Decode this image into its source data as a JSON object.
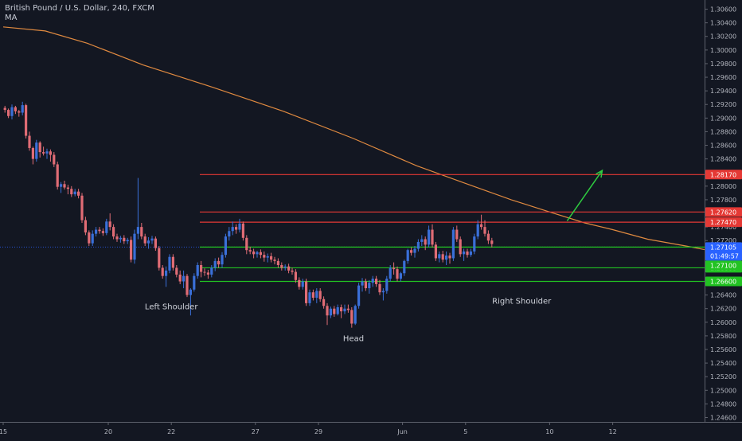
{
  "chart_data": {
    "type": "candlestick",
    "title": "British Pound / U.S. Dollar, 240, FXCM",
    "indicator_label": "MA",
    "ylim": [
      1.246,
      1.307
    ],
    "y_ticks": [
      "1.30600",
      "1.30400",
      "1.30200",
      "1.30000",
      "1.29800",
      "1.29600",
      "1.29400",
      "1.29200",
      "1.29000",
      "1.28800",
      "1.28600",
      "1.28400",
      "1.28200",
      "1.28000",
      "1.27800",
      "1.27600",
      "1.27400",
      "1.27200",
      "1.27000",
      "1.26800",
      "1.26600",
      "1.26400",
      "1.26200",
      "1.26000",
      "1.25800",
      "1.25600",
      "1.25400",
      "1.25200",
      "1.25000",
      "1.24800",
      "1.24600"
    ],
    "x_ticks": [
      {
        "label": "15",
        "bar": 0
      },
      {
        "label": "20",
        "bar": 30
      },
      {
        "label": "22",
        "bar": 48
      },
      {
        "label": "27",
        "bar": 72
      },
      {
        "label": "29",
        "bar": 90
      },
      {
        "label": "Jun",
        "bar": 114
      },
      {
        "label": "5",
        "bar": 132
      },
      {
        "label": "10",
        "bar": 156
      },
      {
        "label": "12",
        "bar": 174
      }
    ],
    "up_color": "#3a6fd8",
    "down_color": "#e06c75",
    "candles": [
      [
        1.2915,
        1.2918,
        1.2908,
        1.2912
      ],
      [
        1.2912,
        1.2914,
        1.29,
        1.2903
      ],
      [
        1.2903,
        1.292,
        1.2898,
        1.2916
      ],
      [
        1.2916,
        1.2918,
        1.2906,
        1.291
      ],
      [
        1.291,
        1.2912,
        1.2902,
        1.2908
      ],
      [
        1.2908,
        1.2924,
        1.2904,
        1.2919
      ],
      [
        1.2919,
        1.2921,
        1.287,
        1.2874
      ],
      [
        1.2874,
        1.288,
        1.2852,
        1.2856
      ],
      [
        1.2856,
        1.2858,
        1.2832,
        1.284
      ],
      [
        1.284,
        1.2868,
        1.2836,
        1.2864
      ],
      [
        1.2864,
        1.2866,
        1.2842,
        1.285
      ],
      [
        1.285,
        1.2858,
        1.2845,
        1.2848
      ],
      [
        1.2848,
        1.2855,
        1.284,
        1.2851
      ],
      [
        1.2851,
        1.2854,
        1.2836,
        1.2846
      ],
      [
        1.2846,
        1.285,
        1.2828,
        1.2832
      ],
      [
        1.2832,
        1.2836,
        1.2795,
        1.2799
      ],
      [
        1.2799,
        1.2806,
        1.279,
        1.2803
      ],
      [
        1.2803,
        1.2808,
        1.2795,
        1.2798
      ],
      [
        1.2798,
        1.2802,
        1.2788,
        1.2796
      ],
      [
        1.2796,
        1.28,
        1.2784,
        1.2788
      ],
      [
        1.2788,
        1.2796,
        1.2785,
        1.2792
      ],
      [
        1.2792,
        1.2796,
        1.2782,
        1.2786
      ],
      [
        1.2786,
        1.279,
        1.2746,
        1.275
      ],
      [
        1.275,
        1.2755,
        1.2728,
        1.2732
      ],
      [
        1.2732,
        1.2735,
        1.2712,
        1.2716
      ],
      [
        1.2716,
        1.2735,
        1.2712,
        1.273
      ],
      [
        1.273,
        1.274,
        1.2726,
        1.2736
      ],
      [
        1.2736,
        1.274,
        1.273,
        1.2734
      ],
      [
        1.2734,
        1.2738,
        1.2727,
        1.2731
      ],
      [
        1.2731,
        1.2752,
        1.2728,
        1.2748
      ],
      [
        1.2748,
        1.276,
        1.2735,
        1.274
      ],
      [
        1.274,
        1.2744,
        1.2722,
        1.2726
      ],
      [
        1.2726,
        1.273,
        1.2718,
        1.2722
      ],
      [
        1.2722,
        1.2727,
        1.2717,
        1.2724
      ],
      [
        1.2724,
        1.2728,
        1.2715,
        1.2719
      ],
      [
        1.2719,
        1.2724,
        1.2715,
        1.2721
      ],
      [
        1.2721,
        1.2726,
        1.2688,
        1.2692
      ],
      [
        1.2692,
        1.2736,
        1.2686,
        1.273
      ],
      [
        1.273,
        1.2812,
        1.2722,
        1.274
      ],
      [
        1.274,
        1.2746,
        1.2722,
        1.2726
      ],
      [
        1.2726,
        1.273,
        1.2712,
        1.2716
      ],
      [
        1.2716,
        1.2725,
        1.2708,
        1.272
      ],
      [
        1.272,
        1.2727,
        1.2715,
        1.2723
      ],
      [
        1.2723,
        1.2726,
        1.2705,
        1.2709
      ],
      [
        1.2709,
        1.2712,
        1.2676,
        1.268
      ],
      [
        1.268,
        1.2684,
        1.2664,
        1.2668
      ],
      [
        1.2668,
        1.2682,
        1.2652,
        1.2676
      ],
      [
        1.2676,
        1.27,
        1.2672,
        1.2696
      ],
      [
        1.2696,
        1.27,
        1.2676,
        1.268
      ],
      [
        1.268,
        1.2684,
        1.2666,
        1.267
      ],
      [
        1.267,
        1.2676,
        1.2656,
        1.266
      ],
      [
        1.266,
        1.2676,
        1.265,
        1.2668
      ],
      [
        1.2668,
        1.2671,
        1.2637,
        1.264
      ],
      [
        1.264,
        1.265,
        1.261,
        1.2648
      ],
      [
        1.2648,
        1.2672,
        1.2645,
        1.2668
      ],
      [
        1.2668,
        1.2688,
        1.2664,
        1.2684
      ],
      [
        1.2684,
        1.269,
        1.2666,
        1.2674
      ],
      [
        1.2674,
        1.2679,
        1.2668,
        1.2673
      ],
      [
        1.2673,
        1.2677,
        1.2664,
        1.267
      ],
      [
        1.267,
        1.2684,
        1.2666,
        1.268
      ],
      [
        1.268,
        1.2694,
        1.2675,
        1.269
      ],
      [
        1.269,
        1.2695,
        1.268,
        1.2685
      ],
      [
        1.2685,
        1.2703,
        1.268,
        1.2699
      ],
      [
        1.2699,
        1.273,
        1.2695,
        1.2726
      ],
      [
        1.2726,
        1.274,
        1.272,
        1.2734
      ],
      [
        1.2734,
        1.2748,
        1.2728,
        1.274
      ],
      [
        1.274,
        1.2744,
        1.273,
        1.2736
      ],
      [
        1.2736,
        1.2752,
        1.2732,
        1.2745
      ],
      [
        1.2745,
        1.2748,
        1.272,
        1.2724
      ],
      [
        1.2724,
        1.2728,
        1.27,
        1.2706
      ],
      [
        1.2706,
        1.2711,
        1.27,
        1.2704
      ],
      [
        1.2704,
        1.2708,
        1.2694,
        1.27
      ],
      [
        1.27,
        1.2705,
        1.2695,
        1.2703
      ],
      [
        1.2703,
        1.2707,
        1.2694,
        1.2699
      ],
      [
        1.2699,
        1.2704,
        1.2689,
        1.2695
      ],
      [
        1.2695,
        1.2701,
        1.2688,
        1.2697
      ],
      [
        1.2697,
        1.2702,
        1.2688,
        1.2692
      ],
      [
        1.2692,
        1.2696,
        1.2685,
        1.269
      ],
      [
        1.269,
        1.2694,
        1.268,
        1.2684
      ],
      [
        1.2684,
        1.2688,
        1.2676,
        1.268
      ],
      [
        1.268,
        1.2685,
        1.2676,
        1.2682
      ],
      [
        1.2682,
        1.2686,
        1.2672,
        1.2676
      ],
      [
        1.2676,
        1.268,
        1.267,
        1.2674
      ],
      [
        1.2674,
        1.2678,
        1.2658,
        1.2662
      ],
      [
        1.2662,
        1.2666,
        1.2648,
        1.2652
      ],
      [
        1.2652,
        1.2664,
        1.2648,
        1.266
      ],
      [
        1.266,
        1.2664,
        1.2624,
        1.2628
      ],
      [
        1.2628,
        1.2648,
        1.2624,
        1.2644
      ],
      [
        1.2644,
        1.2648,
        1.2632,
        1.2636
      ],
      [
        1.2636,
        1.265,
        1.2628,
        1.2646
      ],
      [
        1.2646,
        1.265,
        1.263,
        1.2634
      ],
      [
        1.2634,
        1.2638,
        1.262,
        1.2624
      ],
      [
        1.2624,
        1.2628,
        1.2596,
        1.261
      ],
      [
        1.261,
        1.2623,
        1.2606,
        1.262
      ],
      [
        1.262,
        1.2624,
        1.2608,
        1.2612
      ],
      [
        1.2612,
        1.2626,
        1.261,
        1.2622
      ],
      [
        1.2622,
        1.2626,
        1.2606,
        1.2616
      ],
      [
        1.2616,
        1.2626,
        1.2612,
        1.262
      ],
      [
        1.262,
        1.2626,
        1.2614,
        1.2618
      ],
      [
        1.2618,
        1.2622,
        1.2592,
        1.2598
      ],
      [
        1.2598,
        1.2626,
        1.2596,
        1.2624
      ],
      [
        1.2624,
        1.2658,
        1.262,
        1.2654
      ],
      [
        1.2654,
        1.2665,
        1.2645,
        1.266
      ],
      [
        1.266,
        1.2664,
        1.2646,
        1.265
      ],
      [
        1.265,
        1.2662,
        1.2642,
        1.2658
      ],
      [
        1.2658,
        1.2668,
        1.2652,
        1.2664
      ],
      [
        1.2664,
        1.2668,
        1.2652,
        1.2656
      ],
      [
        1.2656,
        1.2662,
        1.264,
        1.2644
      ],
      [
        1.2644,
        1.265,
        1.2632,
        1.2646
      ],
      [
        1.2646,
        1.2668,
        1.2642,
        1.2664
      ],
      [
        1.2664,
        1.2684,
        1.266,
        1.268
      ],
      [
        1.268,
        1.2688,
        1.267,
        1.2678
      ],
      [
        1.2678,
        1.2682,
        1.266,
        1.2664
      ],
      [
        1.2664,
        1.2674,
        1.266,
        1.2672
      ],
      [
        1.2672,
        1.2692,
        1.2668,
        1.269
      ],
      [
        1.269,
        1.2708,
        1.2686,
        1.2706
      ],
      [
        1.2706,
        1.271,
        1.2698,
        1.2702
      ],
      [
        1.2702,
        1.2712,
        1.2695,
        1.2708
      ],
      [
        1.2708,
        1.2722,
        1.2704,
        1.2718
      ],
      [
        1.2718,
        1.2728,
        1.2712,
        1.2722
      ],
      [
        1.2722,
        1.2726,
        1.2706,
        1.2714
      ],
      [
        1.2714,
        1.2742,
        1.271,
        1.2736
      ],
      [
        1.2736,
        1.2744,
        1.271,
        1.2714
      ],
      [
        1.2714,
        1.2718,
        1.269,
        1.2694
      ],
      [
        1.2694,
        1.2704,
        1.2688,
        1.27
      ],
      [
        1.27,
        1.2705,
        1.2688,
        1.2692
      ],
      [
        1.2692,
        1.2704,
        1.2684,
        1.2698
      ],
      [
        1.2698,
        1.2702,
        1.2686,
        1.2694
      ],
      [
        1.2694,
        1.274,
        1.269,
        1.2736
      ],
      [
        1.2736,
        1.2742,
        1.2718,
        1.2722
      ],
      [
        1.2722,
        1.2726,
        1.2696,
        1.27
      ],
      [
        1.27,
        1.2708,
        1.269,
        1.2704
      ],
      [
        1.2704,
        1.2708,
        1.2695,
        1.2699
      ],
      [
        1.2699,
        1.2708,
        1.2696,
        1.2704
      ],
      [
        1.2704,
        1.273,
        1.27,
        1.2726
      ],
      [
        1.2726,
        1.275,
        1.2722,
        1.2744
      ],
      [
        1.2744,
        1.2758,
        1.2736,
        1.274
      ],
      [
        1.274,
        1.275,
        1.2726,
        1.273
      ],
      [
        1.273,
        1.2735,
        1.2715,
        1.272
      ],
      [
        1.272,
        1.2724,
        1.271,
        1.2715
      ]
    ],
    "ma_points": [
      [
        0,
        1.3034
      ],
      [
        12,
        1.3028
      ],
      [
        24,
        1.301
      ],
      [
        40,
        1.2978
      ],
      [
        60,
        1.2945
      ],
      [
        80,
        1.291
      ],
      [
        100,
        1.287
      ],
      [
        118,
        1.283
      ],
      [
        132,
        1.2804
      ],
      [
        145,
        1.278
      ],
      [
        156,
        1.2762
      ],
      [
        166,
        1.2746
      ],
      [
        174,
        1.2736
      ],
      [
        184,
        1.2722
      ],
      [
        195,
        1.2712
      ],
      [
        205,
        1.2702
      ],
      [
        230,
        1.2683
      ]
    ],
    "ma_color": "#e08a40",
    "levels": [
      {
        "price": 1.2817,
        "color": "#e53935",
        "label": "1.28170"
      },
      {
        "price": 1.2762,
        "color": "#e53935",
        "label": "1.27620"
      },
      {
        "price": 1.2747,
        "color": "#e53935",
        "label": "1.27470"
      },
      {
        "price": 1.27105,
        "color": "#22c322",
        "label": "1.27105"
      },
      {
        "price": 1.268,
        "color": "#22c322",
        "label": "1.26800"
      },
      {
        "price": 1.266,
        "color": "#22c322",
        "label": "1.26600"
      }
    ],
    "current_price": {
      "label": "1.27105",
      "countdown": "01:49:57",
      "color": "#2962ff"
    },
    "extra_tag": {
      "label": "1.27100",
      "color": "#22c322"
    },
    "annotations": [
      {
        "text": "Left Shoulder",
        "bar": 48,
        "price": 1.2619
      },
      {
        "text": "Head",
        "bar": 100,
        "price": 1.2572
      },
      {
        "text": "Right Shoulder",
        "bar": 148,
        "price": 1.2627
      }
    ],
    "arrow": {
      "from_bar": 161,
      "from_price": 1.2749,
      "to_bar": 171,
      "to_price": 1.2823,
      "color": "#2ecc40"
    }
  }
}
